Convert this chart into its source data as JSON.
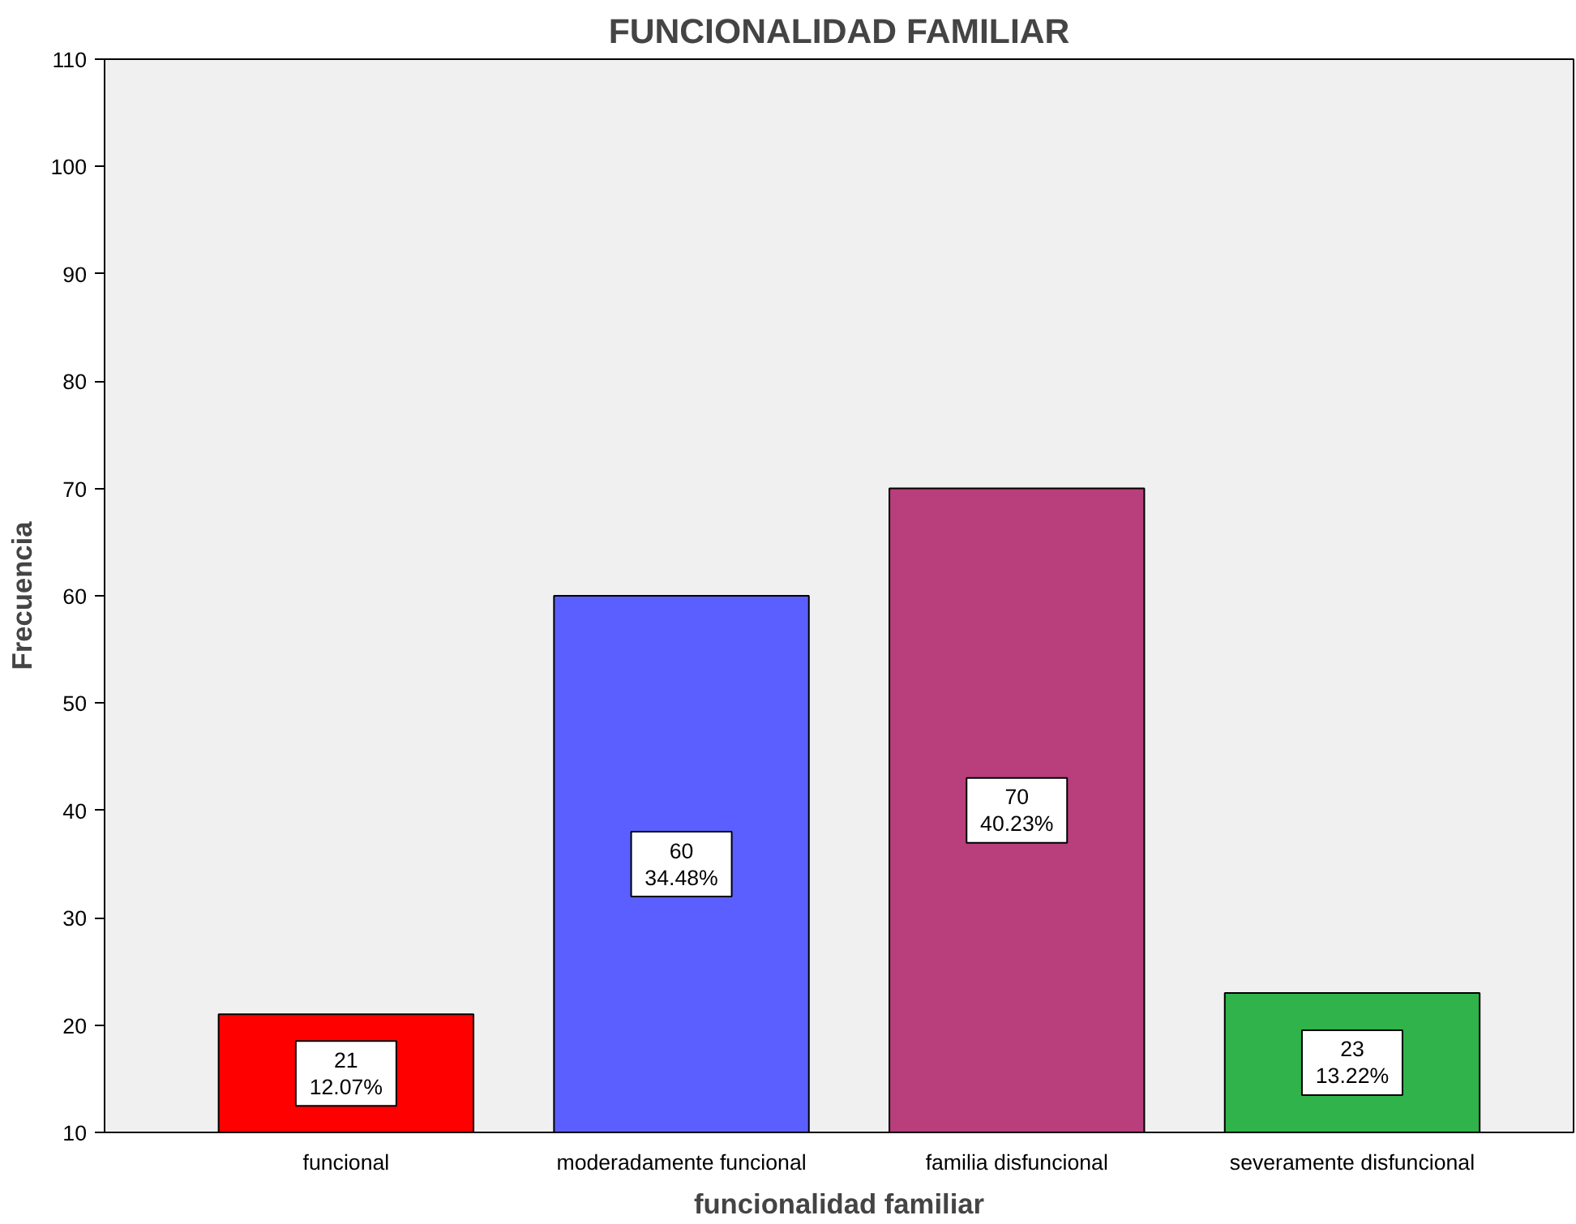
{
  "chart_data": {
    "type": "bar",
    "title": "FUNCIONALIDAD FAMILIAR",
    "xlabel": "funcionalidad familiar",
    "ylabel": "Frecuencia",
    "categories": [
      "funcional",
      "moderadamente funcional",
      "familia disfuncional",
      "severamente disfuncional"
    ],
    "values": [
      21,
      60,
      70,
      23
    ],
    "colors": [
      "#ff0000",
      "#5b5fff",
      "#b83e7c",
      "#2fb34a"
    ],
    "value_labels": [
      "21\n12.07%",
      "60\n34.48%",
      "70\n40.23%",
      "23\n13.22%"
    ],
    "ylim": [
      10,
      110
    ],
    "yticks": [
      10,
      20,
      30,
      40,
      50,
      60,
      70,
      80,
      90,
      100,
      110
    ],
    "grid": false
  }
}
